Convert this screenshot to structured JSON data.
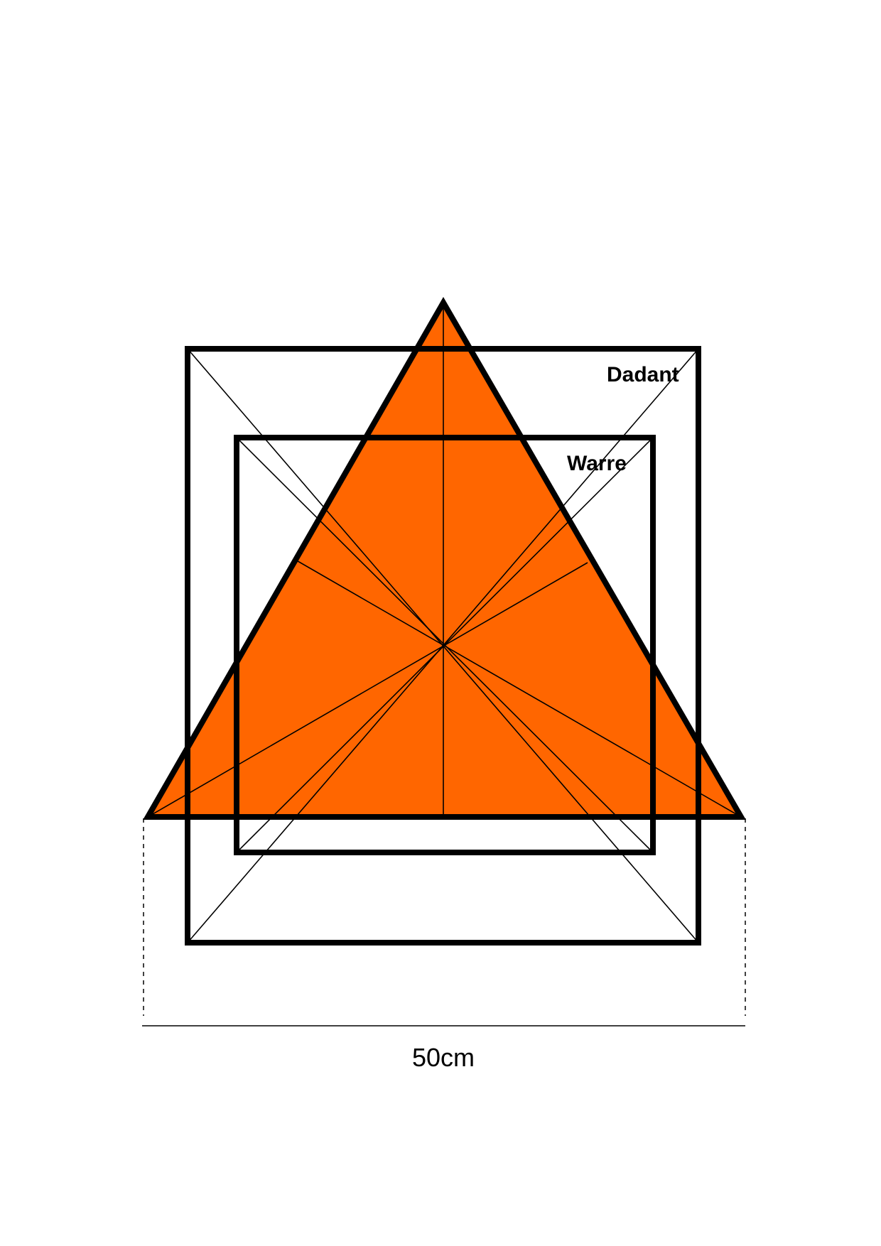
{
  "colors": {
    "triangle_fill": "#FF6600",
    "stroke": "#000000",
    "background": "#FFFFFF"
  },
  "labels": {
    "dadant": "Dadant",
    "warre": "Warre",
    "width": "50cm"
  }
}
